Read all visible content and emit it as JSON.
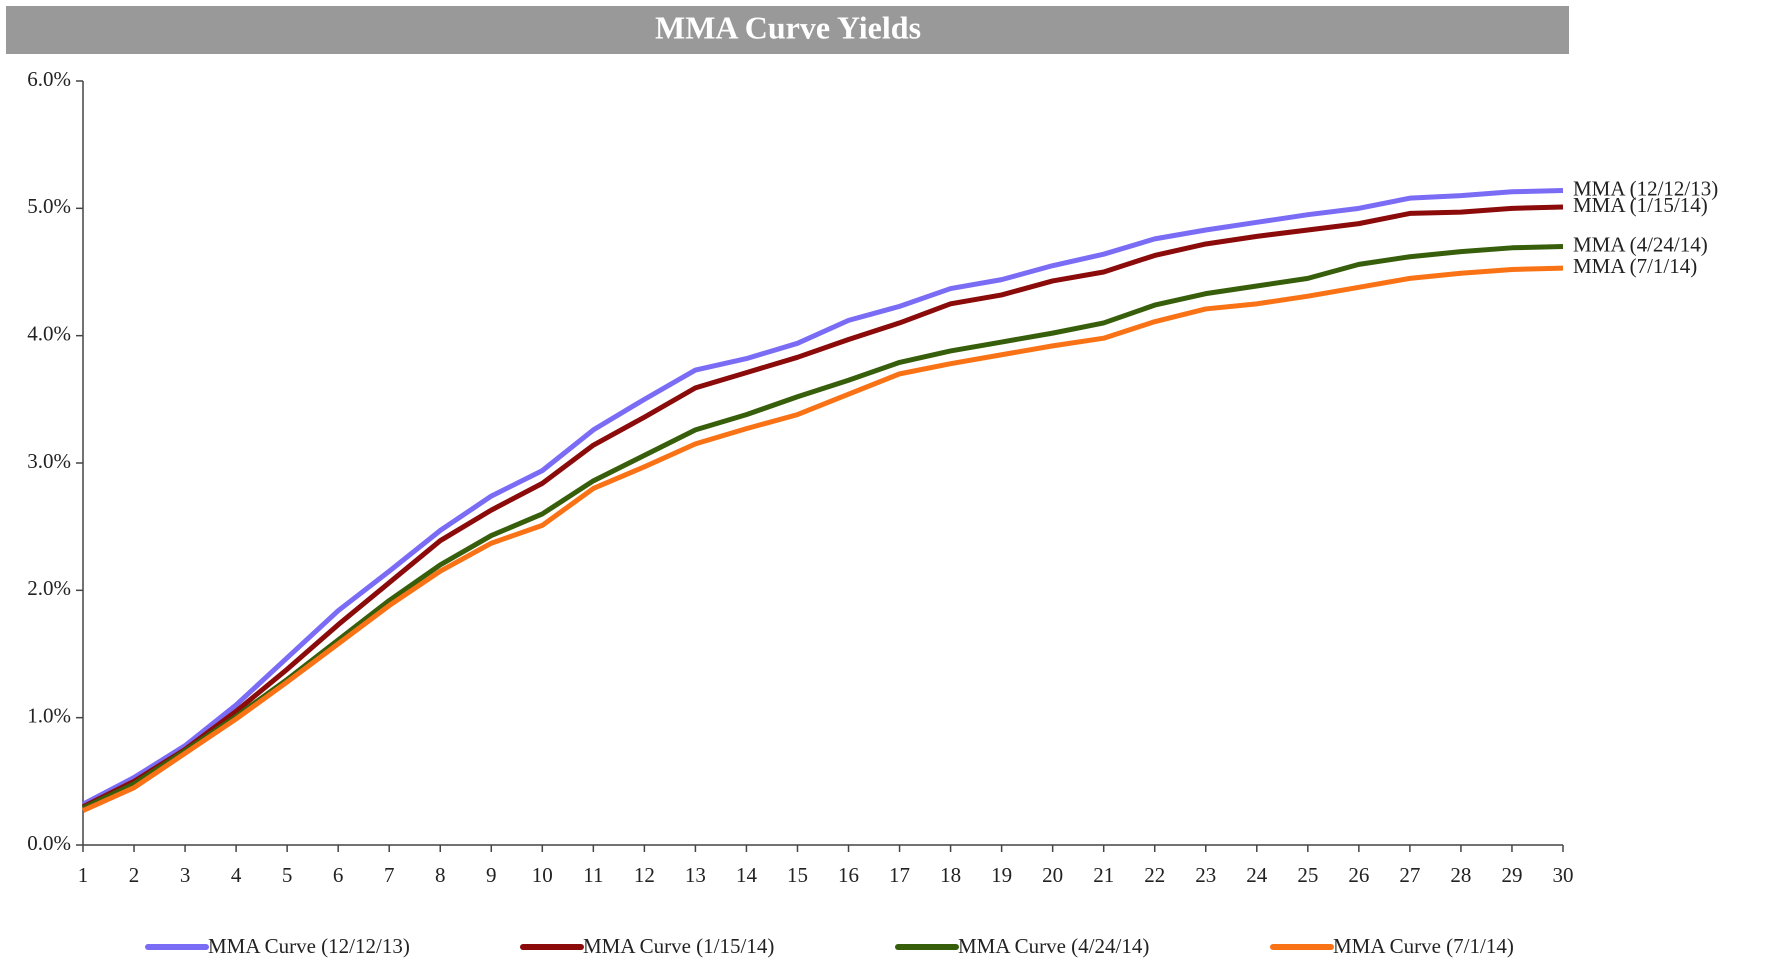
{
  "chart_data": {
    "type": "line",
    "title": "MMA Curve Yields",
    "x": [
      1,
      2,
      3,
      4,
      5,
      6,
      7,
      8,
      9,
      10,
      11,
      12,
      13,
      14,
      15,
      16,
      17,
      18,
      19,
      20,
      21,
      22,
      23,
      24,
      25,
      26,
      27,
      28,
      29,
      30
    ],
    "xlim": [
      1,
      30
    ],
    "xticks": [
      1,
      2,
      3,
      4,
      5,
      6,
      7,
      8,
      9,
      10,
      11,
      12,
      13,
      14,
      15,
      16,
      17,
      18,
      19,
      20,
      21,
      22,
      23,
      24,
      25,
      26,
      27,
      28,
      29,
      30
    ],
    "ylim": [
      0,
      6
    ],
    "yticks": [
      {
        "value": 0,
        "label": "0.0%"
      },
      {
        "value": 1,
        "label": "1.0%"
      },
      {
        "value": 2,
        "label": "2.0%"
      },
      {
        "value": 3,
        "label": "3.0%"
      },
      {
        "value": 4,
        "label": "4.0%"
      },
      {
        "value": 5,
        "label": "5.0%"
      },
      {
        "value": 6,
        "label": "6.0%"
      }
    ],
    "legend": "bottom",
    "series": [
      {
        "name": "MMA Curve (12/12/13)",
        "end_label": "MMA (12/12/13)",
        "color": "#7b6cf6",
        "values": [
          0.32,
          0.53,
          0.78,
          1.1,
          1.47,
          1.84,
          2.15,
          2.47,
          2.74,
          2.94,
          3.26,
          3.5,
          3.73,
          3.82,
          3.94,
          4.12,
          4.23,
          4.37,
          4.44,
          4.55,
          4.64,
          4.76,
          4.83,
          4.89,
          4.95,
          5.0,
          5.08,
          5.1,
          5.13,
          5.14
        ]
      },
      {
        "name": "MMA Curve (1/15/14)",
        "end_label": "MMA (1/15/14)",
        "color": "#8b0a0a",
        "values": [
          0.3,
          0.5,
          0.75,
          1.05,
          1.38,
          1.73,
          2.06,
          2.39,
          2.63,
          2.84,
          3.14,
          3.36,
          3.59,
          3.71,
          3.83,
          3.97,
          4.1,
          4.25,
          4.32,
          4.43,
          4.5,
          4.63,
          4.72,
          4.78,
          4.83,
          4.88,
          4.96,
          4.97,
          5.0,
          5.01
        ]
      },
      {
        "name": "MMA Curve (4/24/14)",
        "end_label": "MMA (4/24/14)",
        "color": "#375f0b",
        "values": [
          0.29,
          0.48,
          0.74,
          1.01,
          1.3,
          1.61,
          1.92,
          2.2,
          2.43,
          2.6,
          2.86,
          3.06,
          3.26,
          3.38,
          3.52,
          3.65,
          3.79,
          3.88,
          3.95,
          4.02,
          4.1,
          4.24,
          4.33,
          4.39,
          4.45,
          4.56,
          4.62,
          4.66,
          4.69,
          4.7
        ]
      },
      {
        "name": "MMA Curve (7/1/14)",
        "end_label": "MMA (7/1/14)",
        "color": "#f97316",
        "values": [
          0.27,
          0.45,
          0.72,
          0.99,
          1.28,
          1.58,
          1.88,
          2.15,
          2.37,
          2.51,
          2.8,
          2.97,
          3.15,
          3.27,
          3.38,
          3.54,
          3.7,
          3.78,
          3.85,
          3.92,
          3.98,
          4.11,
          4.21,
          4.25,
          4.31,
          4.38,
          4.45,
          4.49,
          4.52,
          4.53
        ]
      }
    ]
  }
}
